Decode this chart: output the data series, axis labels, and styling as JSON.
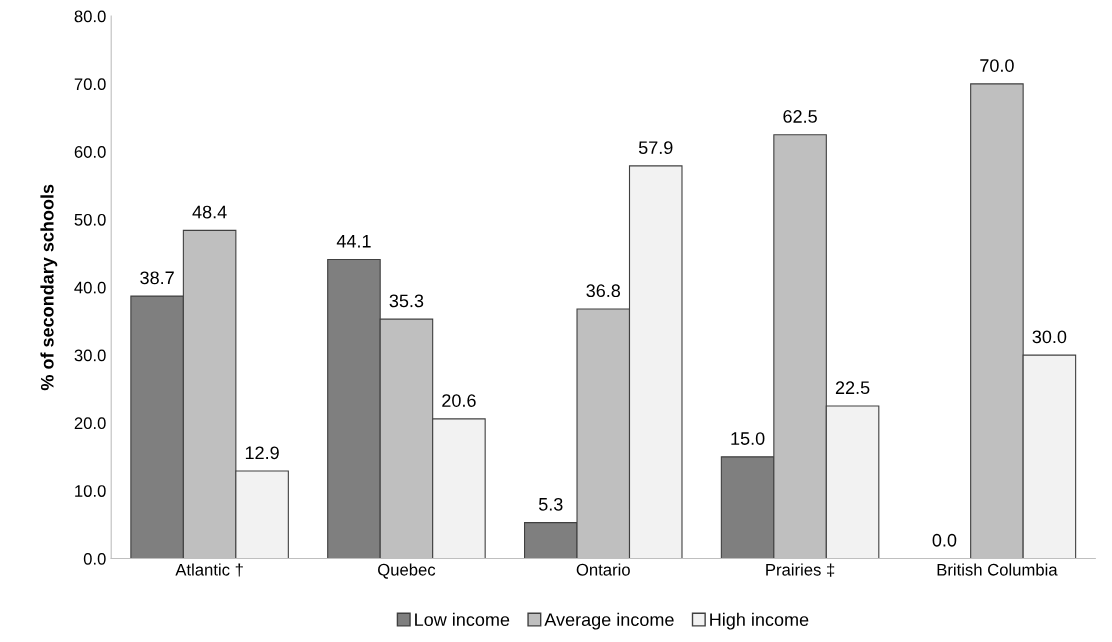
{
  "chart_data": {
    "type": "bar",
    "ylabel": "% of secondary schools",
    "categories": [
      "Atlantic †",
      "Quebec",
      "Ontario",
      "Prairies ‡",
      "British Columbia"
    ],
    "series": [
      {
        "name": "Low income",
        "color": "#7f7f7f",
        "values": [
          38.7,
          44.1,
          5.3,
          15.0,
          0.0
        ],
        "value_labels": [
          "38.7",
          "44.1",
          "5.3",
          "15.0",
          "0.0"
        ]
      },
      {
        "name": "Average income",
        "color": "#bfbfbf",
        "values": [
          48.4,
          35.3,
          36.8,
          62.5,
          70.0
        ],
        "value_labels": [
          "48.4",
          "35.3",
          "36.8",
          "62.5",
          "70.0"
        ]
      },
      {
        "name": "High income",
        "color": "#f2f2f2",
        "values": [
          12.9,
          20.6,
          57.9,
          22.5,
          30.0
        ],
        "value_labels": [
          "12.9",
          "20.6",
          "57.9",
          "22.5",
          "30.0"
        ]
      }
    ],
    "ylim": [
      0,
      80
    ],
    "yticks": [
      {
        "value": 0,
        "label": "0.0"
      },
      {
        "value": 10,
        "label": "10.0"
      },
      {
        "value": 20,
        "label": "20.0"
      },
      {
        "value": 30,
        "label": "30.0"
      },
      {
        "value": 40,
        "label": "40.0"
      },
      {
        "value": 50,
        "label": "50.0"
      },
      {
        "value": 60,
        "label": "60.0"
      },
      {
        "value": 70,
        "label": "70.0"
      },
      {
        "value": 80,
        "label": "80.0"
      }
    ],
    "grid": false,
    "legend": "bottom"
  }
}
